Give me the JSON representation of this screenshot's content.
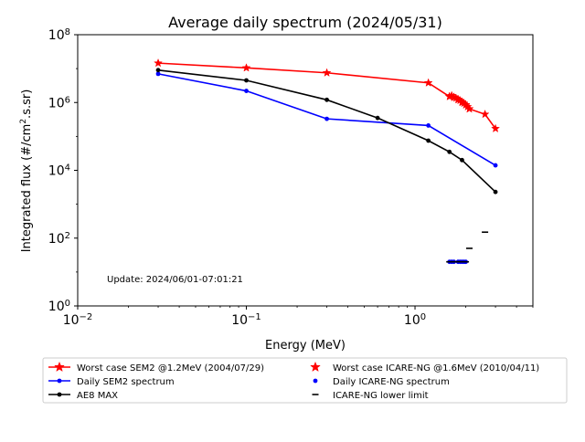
{
  "chart_data": {
    "type": "line",
    "title": "Average daily spectrum (2024/05/31)",
    "xlabel": "Energy (MeV)",
    "ylabel_prefix": "Integrated flux (#/cm",
    "ylabel_sup": "2",
    "ylabel_suffix": ".s.sr)",
    "x_scale": "log",
    "y_scale": "log",
    "xlim": [
      0.01,
      5
    ],
    "ylim": [
      1,
      100000000
    ],
    "x_ticks": [
      {
        "value": 0.01,
        "base": "10",
        "exp": "−2"
      },
      {
        "value": 0.1,
        "base": "10",
        "exp": "−1"
      },
      {
        "value": 1,
        "base": "10",
        "exp": "0"
      }
    ],
    "y_ticks": [
      {
        "value": 1,
        "base": "10",
        "exp": "0"
      },
      {
        "value": 100,
        "base": "10",
        "exp": "2"
      },
      {
        "value": 10000,
        "base": "10",
        "exp": "4"
      },
      {
        "value": 1000000,
        "base": "10",
        "exp": "6"
      },
      {
        "value": 100000000,
        "base": "10",
        "exp": "8"
      }
    ],
    "grid": false,
    "annotation": "Update: 2024/06/01-07:01:21",
    "legend_position": "below plot, two columns",
    "series": [
      {
        "name": "Worst case SEM2 @1.2MeV (2004/07/29)",
        "color": "#ff0000",
        "style": "line",
        "marker": "star",
        "x": [
          0.03,
          0.1,
          0.3,
          1.2,
          1.6,
          1.7,
          1.8,
          1.9,
          2.0,
          2.1,
          2.6,
          3.0
        ],
        "y": [
          14500000,
          10500000,
          7500000,
          3800000,
          1500000,
          1400000,
          1200000,
          1000000,
          850000,
          650000,
          450000,
          170000
        ]
      },
      {
        "name": "Daily SEM2 spectrum",
        "color": "#0000ff",
        "style": "line",
        "marker": "dot",
        "x": [
          0.03,
          0.1,
          0.3,
          1.2,
          3.0
        ],
        "y": [
          7000000,
          2200000,
          330000,
          210000,
          14000
        ]
      },
      {
        "name": "AE8 MAX",
        "color": "#000000",
        "style": "line",
        "marker": "dot",
        "x": [
          0.03,
          0.1,
          0.3,
          0.6,
          1.2,
          1.6,
          1.9,
          3.0
        ],
        "y": [
          9000000,
          4500000,
          1200000,
          350000,
          75000,
          35000,
          20000,
          2300
        ]
      },
      {
        "name": "Worst case ICARE-NG @1.6MeV (2010/04/11)",
        "color": "#ff0000",
        "style": "scatter",
        "marker": "star",
        "x": [
          1.6,
          1.65,
          1.7,
          1.75,
          1.8,
          1.85,
          1.9,
          1.95,
          2.0,
          2.05,
          2.1
        ],
        "y": [
          1500000,
          1600000,
          1450000,
          1350000,
          1250000,
          1150000,
          1050000,
          950000,
          850000,
          750000,
          650000
        ]
      },
      {
        "name": "Daily ICARE-NG spectrum",
        "color": "#0000ff",
        "style": "scatter",
        "marker": "dot",
        "x": [
          1.6,
          1.65,
          1.7,
          1.8,
          1.85,
          1.9,
          1.95,
          2.0
        ],
        "y": [
          20,
          20,
          20,
          20,
          20,
          20,
          20,
          20
        ]
      },
      {
        "name": "ICARE-NG lower limit",
        "color": "#000000",
        "style": "scatter",
        "marker": "dash",
        "x": [
          1.6,
          1.65,
          1.7,
          1.75,
          1.8,
          1.85,
          1.9,
          1.95,
          2.0,
          2.1,
          2.6
        ],
        "y": [
          20,
          20,
          20,
          20,
          20,
          20,
          20,
          20,
          20,
          50,
          150
        ]
      }
    ]
  }
}
